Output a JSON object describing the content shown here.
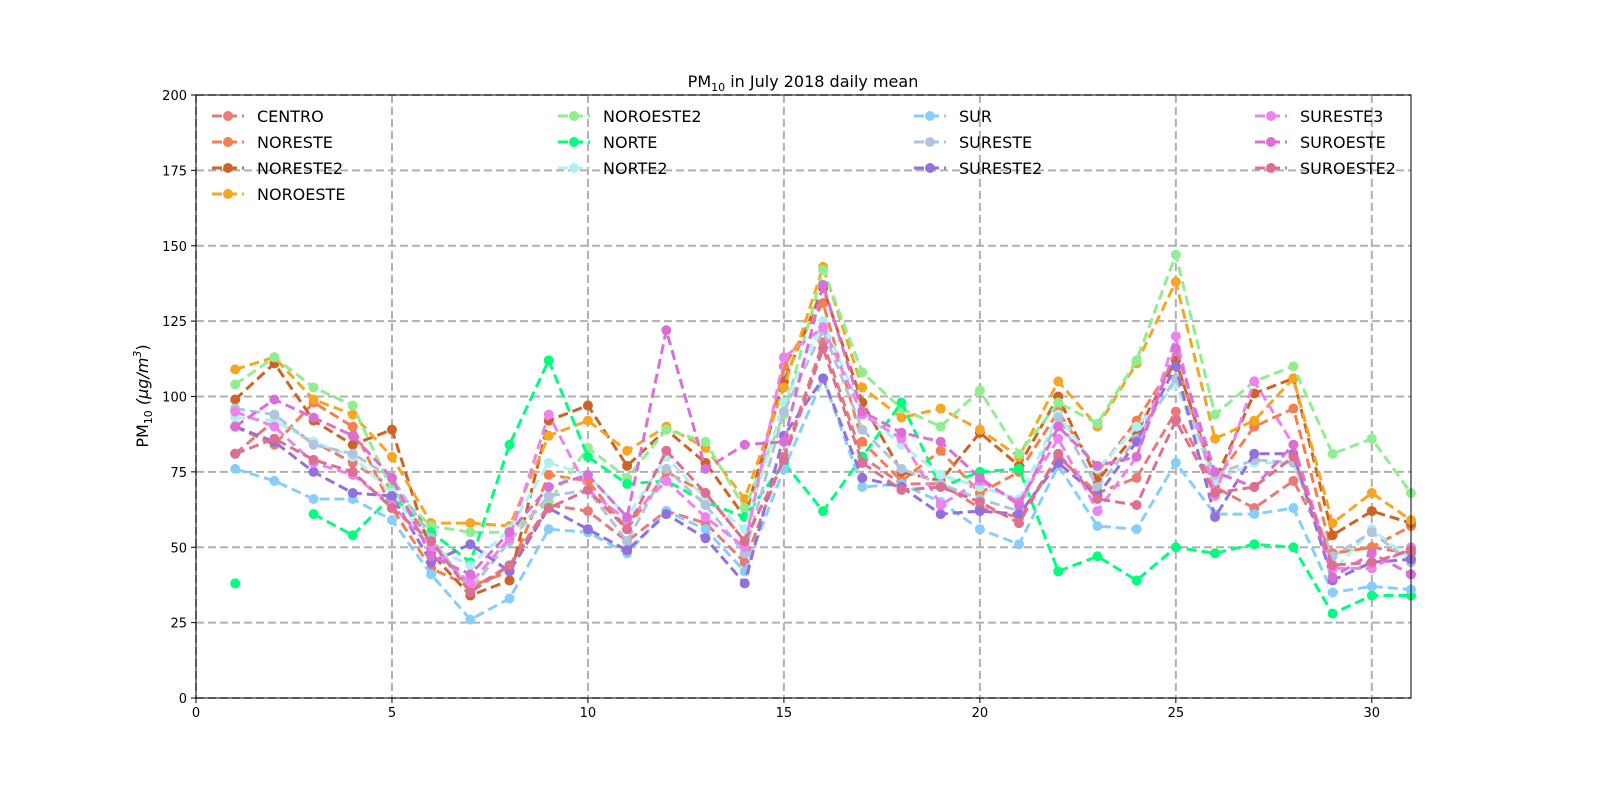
{
  "chart_data": {
    "type": "line",
    "title": "PM",
    "title_sub": "10",
    "title_rest": " in July 2018 daily mean",
    "ylabel": "PM",
    "ylabel_sub": "10",
    "ylabel_rest": " (μg/m",
    "ylabel_sup": "3",
    "ylabel_end": ")",
    "xlim": [
      0,
      31
    ],
    "ylim": [
      0,
      200
    ],
    "xticks": [
      0,
      5,
      10,
      15,
      20,
      25,
      30
    ],
    "yticks": [
      0,
      25,
      50,
      75,
      100,
      125,
      150,
      175,
      200
    ],
    "grid": true,
    "legend_placement": "top",
    "x": [
      1,
      2,
      3,
      4,
      5,
      6,
      7,
      8,
      9,
      10,
      11,
      12,
      13,
      14,
      15,
      16,
      17,
      18,
      19,
      20,
      21,
      22,
      23,
      24,
      25,
      26,
      27,
      28,
      29,
      30,
      31
    ],
    "series": [
      {
        "name": "CENTRO",
        "color": "#e87a7a",
        "values": [
          81,
          92,
          85,
          78,
          70,
          52,
          36,
          44,
          64,
          62,
          52,
          62,
          58,
          45,
          80,
          118,
          80,
          71,
          71,
          63,
          60,
          80,
          68,
          73,
          95,
          70,
          63,
          72,
          48,
          50,
          48
        ]
      },
      {
        "name": "NORESTE",
        "color": "#f47f4f",
        "values": [
          90,
          84,
          98,
          90,
          63,
          43,
          37,
          42,
          74,
          72,
          56,
          75,
          68,
          52,
          110,
          131,
          85,
          72,
          82,
          68,
          75,
          95,
          75,
          92,
          112,
          72,
          90,
          96,
          48,
          50,
          57
        ]
      },
      {
        "name": "NORESTE2",
        "color": "#cd6325",
        "values": [
          99,
          111,
          92,
          84,
          89,
          48,
          34,
          39,
          92,
          97,
          77,
          89,
          78,
          60,
          105,
          136,
          98,
          75,
          72,
          88,
          77,
          100,
          72,
          88,
          112,
          72,
          101,
          106,
          54,
          62,
          58
        ]
      },
      {
        "name": "NOROESTE",
        "color": "#f5a623",
        "values": [
          109,
          113,
          99,
          94,
          80,
          58,
          58,
          57,
          87,
          92,
          82,
          90,
          83,
          66,
          103,
          143,
          103,
          93,
          96,
          89,
          80,
          105,
          90,
          111,
          138,
          86,
          92,
          106,
          58,
          68,
          59
        ]
      },
      {
        "name": "NOROESTE2",
        "color": "#90ee90",
        "values": [
          104,
          113,
          103,
          97,
          69,
          57,
          55,
          55,
          65,
          83,
          73,
          89,
          85,
          63,
          94,
          142,
          108,
          96,
          90,
          102,
          81,
          98,
          91,
          112,
          147,
          94,
          105,
          110,
          81,
          86,
          68
        ]
      },
      {
        "name": "NORTE",
        "color": "#00ff7f",
        "values": [
          38,
          null,
          61,
          54,
          67,
          55,
          45,
          84,
          112,
          80,
          71,
          72,
          65,
          60,
          78,
          62,
          80,
          98,
          70,
          75,
          76,
          42,
          47,
          39,
          50,
          48,
          51,
          50,
          28,
          34,
          34
        ]
      },
      {
        "name": "NORTE2",
        "color": "#b0f0f0",
        "values": [
          93,
          92,
          85,
          80,
          68,
          50,
          44,
          56,
          78,
          74,
          60,
          80,
          66,
          56,
          98,
          125,
          95,
          84,
          74,
          70,
          66,
          94,
          76,
          90,
          104,
          72,
          78,
          78,
          42,
          56,
          46
        ]
      },
      {
        "name": "SUR",
        "color": "#87cefa",
        "values": [
          76,
          72,
          66,
          66,
          59,
          41,
          26,
          33,
          56,
          55,
          48,
          62,
          56,
          42,
          76,
          106,
          70,
          71,
          65,
          56,
          51,
          77,
          57,
          56,
          78,
          61,
          61,
          63,
          35,
          37,
          36
        ]
      },
      {
        "name": "SURESTE",
        "color": "#b0c4de",
        "values": [
          96,
          94,
          84,
          81,
          73,
          53,
          36,
          52,
          67,
          69,
          52,
          76,
          64,
          48,
          95,
          122,
          89,
          76,
          71,
          66,
          62,
          93,
          70,
          86,
          106,
          74,
          79,
          78,
          47,
          55,
          45
        ]
      },
      {
        "name": "SURESTE2",
        "color": "#9370db",
        "values": [
          90,
          85,
          75,
          68,
          67,
          45,
          51,
          42,
          63,
          56,
          49,
          61,
          53,
          38,
          87,
          106,
          73,
          70,
          61,
          62,
          61,
          78,
          67,
          85,
          110,
          60,
          81,
          81,
          39,
          45,
          46
        ]
      },
      {
        "name": "SURESTE3",
        "color": "#ee82ee",
        "values": [
          95,
          90,
          78,
          74,
          64,
          50,
          38,
          53,
          94,
          69,
          59,
          72,
          60,
          50,
          113,
          123,
          94,
          86,
          64,
          72,
          65,
          86,
          62,
          80,
          120,
          67,
          105,
          84,
          43,
          43,
          50
        ]
      },
      {
        "name": "SUROESTE",
        "color": "#da70d6",
        "values": [
          90,
          99,
          93,
          87,
          73,
          47,
          41,
          55,
          70,
          74,
          60,
          122,
          76,
          84,
          85,
          137,
          95,
          88,
          85,
          73,
          64,
          90,
          77,
          80,
          116,
          75,
          70,
          84,
          40,
          48,
          41
        ]
      },
      {
        "name": "SUROESTE2",
        "color": "#db7093",
        "values": [
          81,
          86,
          79,
          75,
          63,
          52,
          35,
          44,
          63,
          69,
          56,
          82,
          68,
          52,
          79,
          116,
          78,
          69,
          70,
          65,
          58,
          81,
          66,
          64,
          92,
          68,
          70,
          80,
          44,
          45,
          49
        ]
      }
    ]
  }
}
